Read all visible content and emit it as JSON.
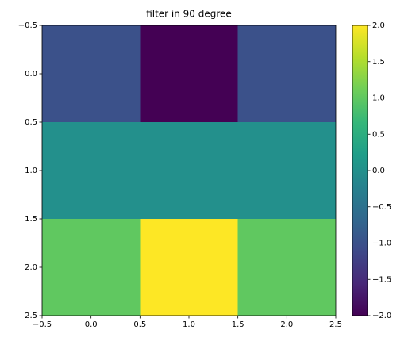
{
  "chart_data": {
    "type": "heatmap",
    "title": "filter in 90 degree",
    "values": [
      [
        -1,
        -2,
        -1
      ],
      [
        0,
        0,
        0
      ],
      [
        1,
        2,
        1
      ]
    ],
    "colormap": "viridis",
    "xlim": [
      -0.5,
      2.5
    ],
    "xticks": [
      {
        "value": -0.5,
        "label": "−0.5"
      },
      {
        "value": 0,
        "label": "0.0"
      },
      0.5,
      {
        "value": 1,
        "label": "1.0"
      },
      1.5,
      {
        "value": 2,
        "label": "2.0"
      },
      2.5
    ],
    "ylim": [
      2.5,
      -0.5
    ],
    "yticks": [
      {
        "value": -0.5,
        "label": "−0.5"
      },
      {
        "value": 0,
        "label": "0.0"
      },
      0.5,
      {
        "value": 1,
        "label": "1.0"
      },
      1.5,
      {
        "value": 2,
        "label": "2.0"
      },
      2.5
    ],
    "clim": [
      -2,
      2
    ],
    "cticks": [
      {
        "value": -2,
        "label": "−2.0"
      },
      {
        "value": -1.5,
        "label": "−1.5"
      },
      {
        "value": -1,
        "label": "−1.0"
      },
      {
        "value": -0.5,
        "label": "−0.5"
      },
      {
        "value": 0,
        "label": "0.0"
      },
      0.5,
      {
        "value": 1,
        "label": "1.0"
      },
      1.5,
      {
        "value": 2,
        "label": "2.0"
      }
    ]
  }
}
